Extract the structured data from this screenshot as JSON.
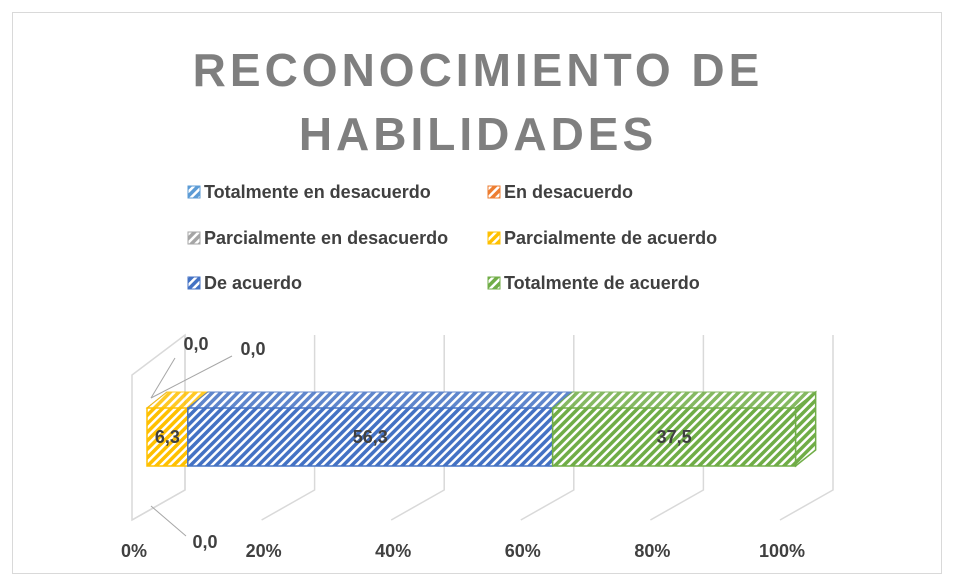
{
  "chart_data": {
    "type": "bar3d_stacked_percent_horizontal",
    "title": "RECONOCIMIENTO DE HABILIDADES",
    "categories": [
      null
    ],
    "series": [
      {
        "name": "Totalmente en desacuerdo",
        "color": "#5b9bd5",
        "values": [
          0.0
        ],
        "value_labels": [
          "0,0"
        ]
      },
      {
        "name": "En desacuerdo",
        "color": "#ed7d31",
        "values": [
          0.0
        ],
        "value_labels": [
          "0,0"
        ]
      },
      {
        "name": "Parcialmente en desacuerdo",
        "color": "#a5a5a5",
        "values": [
          0.0
        ],
        "value_labels": [
          "0,0"
        ]
      },
      {
        "name": "Parcialmente de acuerdo",
        "color": "#ffc000",
        "values": [
          6.3
        ],
        "value_labels": [
          "6,3"
        ]
      },
      {
        "name": "De acuerdo",
        "color": "#4472c4",
        "values": [
          56.3
        ],
        "value_labels": [
          "56,3"
        ]
      },
      {
        "name": "Totalmente de acuerdo",
        "color": "#70ad47",
        "values": [
          37.5
        ],
        "value_labels": [
          "37,5"
        ]
      }
    ],
    "xlim": [
      0,
      100
    ],
    "xticks": [
      {
        "value": 0,
        "label": "0%"
      },
      {
        "value": 20,
        "label": "20%"
      },
      {
        "value": 40,
        "label": "40%"
      },
      {
        "value": 60,
        "label": "60%"
      },
      {
        "value": 80,
        "label": "80%"
      },
      {
        "value": 100,
        "label": "100%"
      }
    ],
    "grid": true,
    "legend": "top"
  }
}
